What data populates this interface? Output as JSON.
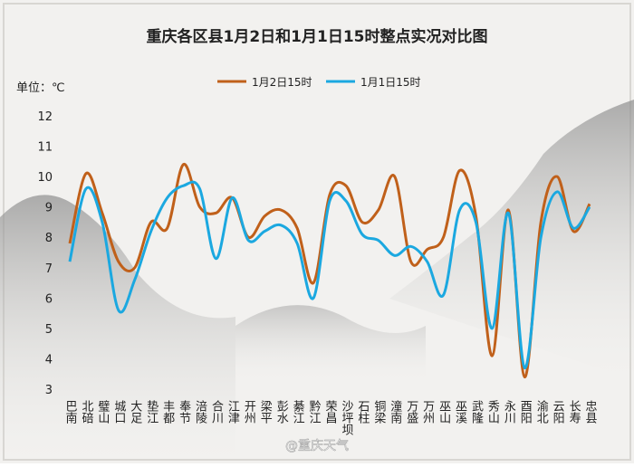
{
  "chart_data": {
    "type": "line",
    "title": "重庆各区县1月2日和1月1日15时整点实况对比图",
    "y_label": "单位：℃",
    "watermark": "@重庆天气",
    "categories": [
      "巴南",
      "北碚",
      "璧山",
      "城口",
      "大足",
      "垫江",
      "丰都",
      "奉节",
      "涪陵",
      "合川",
      "江津",
      "开州",
      "梁平",
      "彭水",
      "綦江",
      "黔江",
      "荣昌",
      "沙坪坝",
      "石柱",
      "铜梁",
      "潼南",
      "万盛",
      "万州",
      "巫山",
      "巫溪",
      "武隆",
      "秀山",
      "永川",
      "酉阳",
      "渝北",
      "云阳",
      "长寿",
      "忠县"
    ],
    "series": [
      {
        "name": "1月2日15时",
        "color": "#c0601a",
        "values": [
          7.8,
          10.1,
          8.8,
          7.2,
          7.0,
          8.5,
          8.3,
          10.4,
          9.0,
          8.8,
          9.3,
          8.0,
          8.7,
          8.9,
          8.3,
          6.5,
          9.4,
          9.7,
          8.5,
          8.9,
          10.0,
          7.2,
          7.6,
          8.0,
          10.2,
          8.7,
          4.1,
          8.9,
          3.4,
          8.5,
          10.0,
          8.2,
          9.1
        ]
      },
      {
        "name": "1月1日15时",
        "color": "#1ba8e0",
        "values": [
          7.2,
          9.6,
          8.5,
          5.6,
          6.6,
          8.2,
          9.3,
          9.7,
          9.6,
          7.3,
          9.3,
          7.9,
          8.2,
          8.4,
          7.8,
          6.0,
          9.2,
          9.2,
          8.1,
          7.9,
          7.4,
          7.7,
          7.2,
          6.1,
          8.9,
          8.5,
          5.0,
          8.8,
          3.7,
          8.0,
          9.5,
          8.3,
          9.0
        ]
      }
    ],
    "ylim": [
      3,
      12
    ],
    "yticks": [
      3,
      4,
      5,
      6,
      7,
      8,
      9,
      10,
      11,
      12
    ],
    "legend": "top",
    "grid": false
  }
}
